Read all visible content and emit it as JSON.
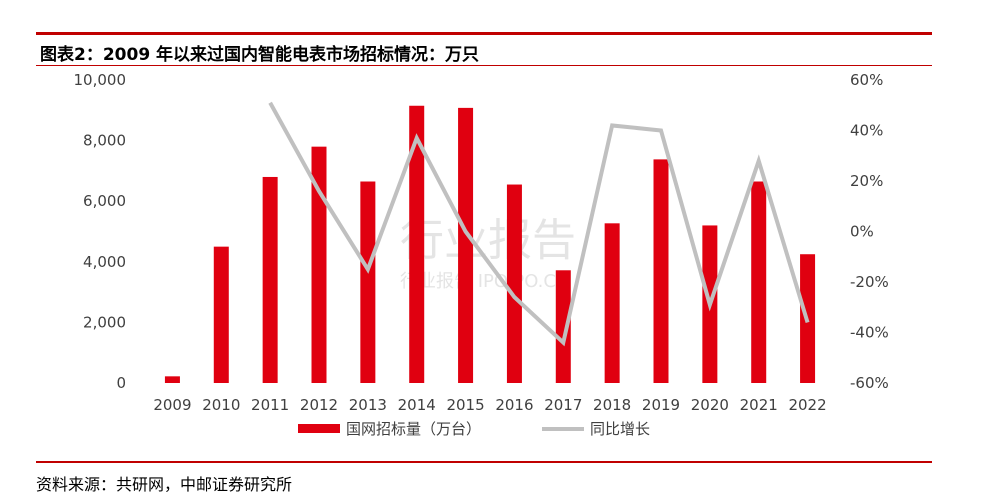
{
  "header": {
    "title": "图表2：2009 年以来过国内智能电表市场招标情况：万只"
  },
  "footer": {
    "source": "资料来源：共研网，中邮证券研究所"
  },
  "watermark": {
    "main": "行业报告",
    "sub": "行业报告  IPOIPO.CN"
  },
  "colors": {
    "bar": "#e00010",
    "line": "#c0c0c0",
    "accent": "#c00000"
  },
  "chart_data": {
    "type": "bar",
    "categories": [
      "2009",
      "2010",
      "2011",
      "2012",
      "2013",
      "2014",
      "2015",
      "2016",
      "2017",
      "2018",
      "2019",
      "2020",
      "2021",
      "2022"
    ],
    "series": [
      {
        "name": "国网招标量（万台）",
        "type": "bar",
        "axis": "left",
        "values": [
          220,
          4500,
          6800,
          7800,
          6650,
          9150,
          9080,
          6550,
          3720,
          5270,
          7380,
          5200,
          6650,
          4250
        ]
      },
      {
        "name": "同比增长",
        "type": "line",
        "axis": "right",
        "values": [
          null,
          null,
          51,
          16,
          -15,
          37,
          0,
          -26,
          -44,
          42,
          40,
          -29,
          28,
          -36
        ]
      }
    ],
    "ylim_left": [
      0,
      10000
    ],
    "ylim_right": [
      -60,
      60
    ],
    "yticks_left": [
      "0",
      "2,000",
      "4,000",
      "6,000",
      "8,000",
      "10,000"
    ],
    "yticks_right": [
      "-60%",
      "-40%",
      "-20%",
      "0%",
      "20%",
      "40%",
      "60%"
    ],
    "legend_position": "bottom",
    "grid": false
  }
}
